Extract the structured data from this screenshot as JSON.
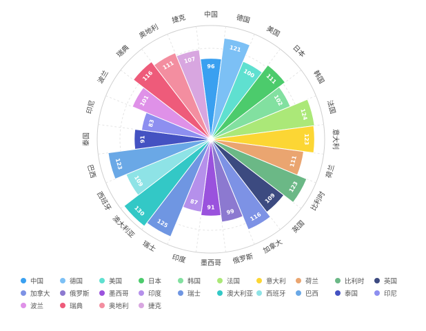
{
  "chart_data": {
    "type": "rose",
    "value_axis": {
      "min": 0,
      "max": 135
    },
    "ring_values": [
      27,
      54,
      81,
      108,
      135
    ],
    "grid": true,
    "legend_position": "bottom",
    "categories": [
      {
        "name": "中国",
        "value": 96,
        "color": "#3aa0f0"
      },
      {
        "name": "德国",
        "value": 121,
        "color": "#7cc0f5"
      },
      {
        "name": "美国",
        "value": 100,
        "color": "#5fe0d0"
      },
      {
        "name": "日本",
        "value": 111,
        "color": "#4ccb6c"
      },
      {
        "name": "韩国",
        "value": 102,
        "color": "#82e0a0"
      },
      {
        "name": "法国",
        "value": 124,
        "color": "#abe878"
      },
      {
        "name": "意大利",
        "value": 123,
        "color": "#fcd634"
      },
      {
        "name": "荷兰",
        "value": 111,
        "color": "#eaa570"
      },
      {
        "name": "比利时",
        "value": 123,
        "color": "#6bb886"
      },
      {
        "name": "英国",
        "value": 109,
        "color": "#3c4a80"
      },
      {
        "name": "加拿大",
        "value": 116,
        "color": "#7d92e5"
      },
      {
        "name": "俄罗斯",
        "value": 99,
        "color": "#8c79d0"
      },
      {
        "name": "墨西哥",
        "value": 91,
        "color": "#9a52dd"
      },
      {
        "name": "印度",
        "value": 87,
        "color": "#b590eb"
      },
      {
        "name": "瑞士",
        "value": 125,
        "color": "#6f96e2"
      },
      {
        "name": "澳大利亚",
        "value": 130,
        "color": "#33c8c6"
      },
      {
        "name": "西班牙",
        "value": 109,
        "color": "#8ee3e6"
      },
      {
        "name": "巴西",
        "value": 123,
        "color": "#6aa8e6"
      },
      {
        "name": "泰国",
        "value": 91,
        "color": "#4452c2"
      },
      {
        "name": "印尼",
        "value": 83,
        "color": "#8d8ff0"
      },
      {
        "name": "波兰",
        "value": 101,
        "color": "#df91e8"
      },
      {
        "name": "瑞典",
        "value": 116,
        "color": "#ee5b7a"
      },
      {
        "name": "奥地利",
        "value": 111,
        "color": "#f38ea0"
      },
      {
        "name": "捷克",
        "value": 107,
        "color": "#d8a6e0"
      }
    ]
  }
}
